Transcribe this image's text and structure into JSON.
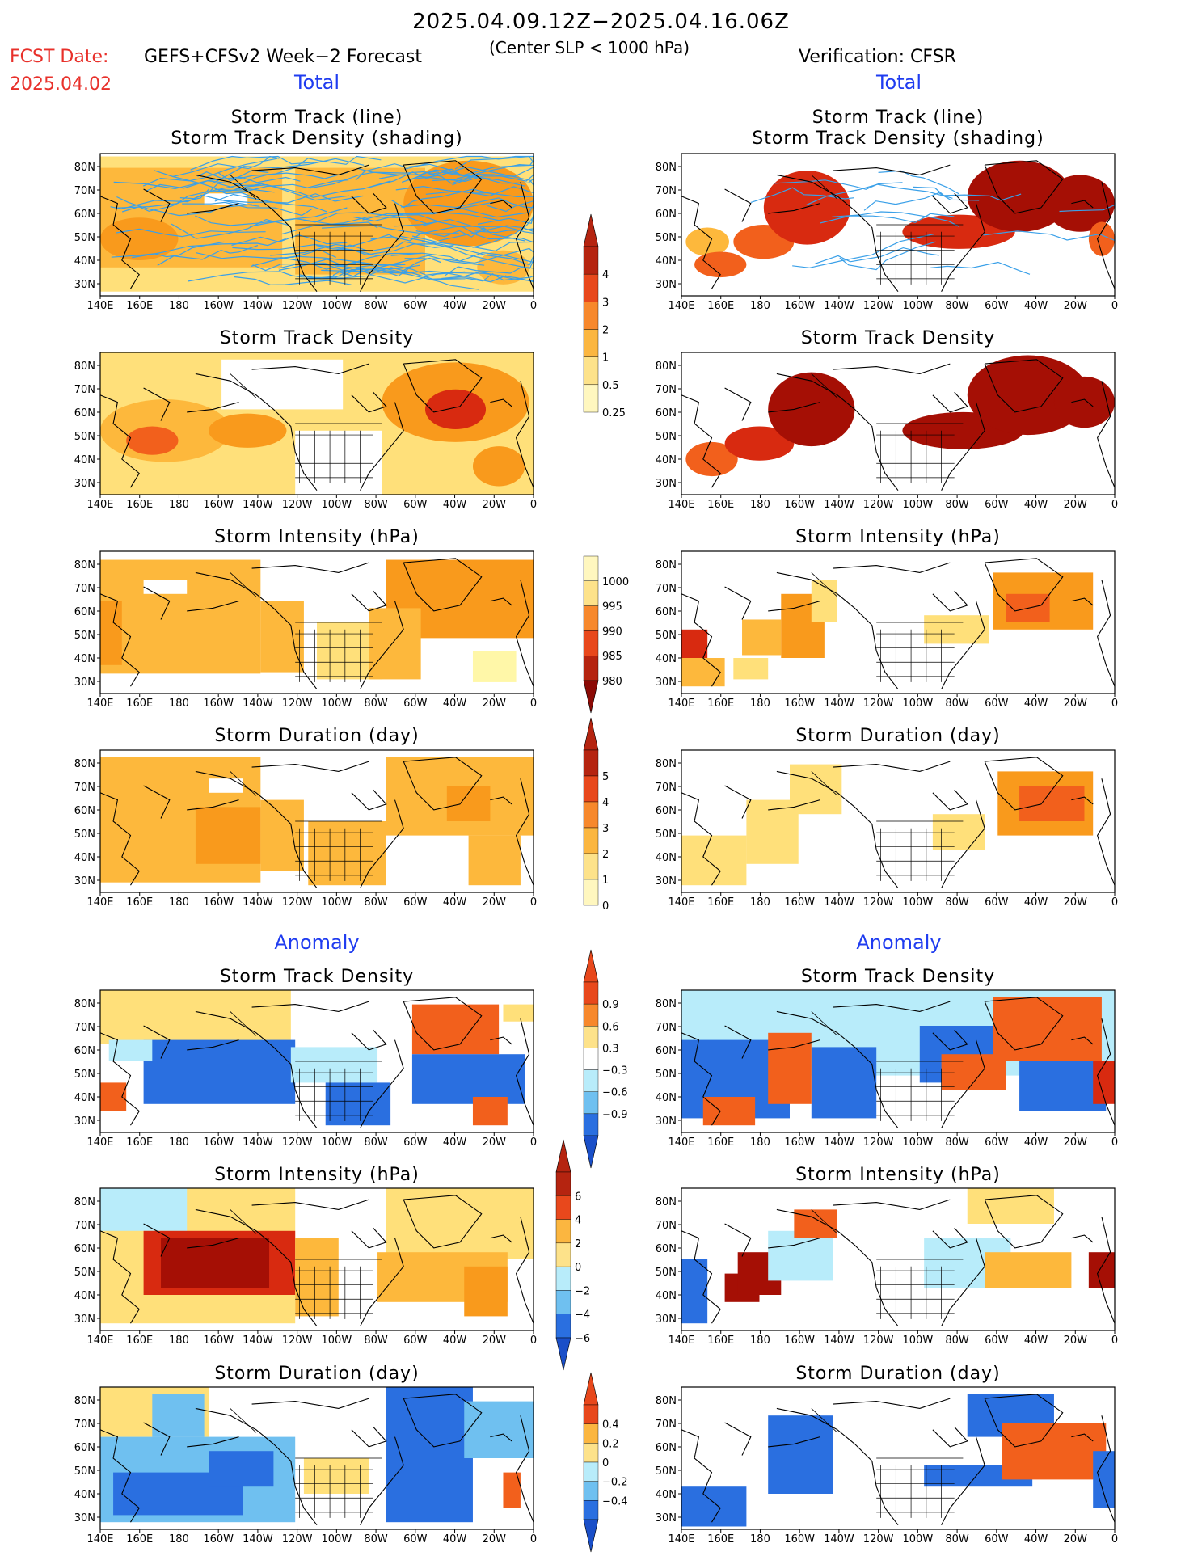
{
  "header": {
    "title": "2025.04.09.12Z−2025.04.16.06Z",
    "fcst_label": "FCST Date:",
    "fcst_date": "2025.04.02",
    "model": "GEFS+CFSv2 Week−2 Forecast",
    "slp_note": "(Center SLP < 1000 hPa)",
    "verification": "Verification: CFSR"
  },
  "section_labels": {
    "left_total": "Total",
    "right_total": "Total",
    "left_anomaly": "Anomaly",
    "right_anomaly": "Anomaly"
  },
  "panel_titles": {
    "track_line": "Storm Track (line)",
    "track_density_shading": "Storm Track Density (shading)",
    "track_density": "Storm Track Density",
    "intensity": "Storm Intensity (hPa)",
    "duration": "Storm Duration (day)"
  },
  "map_axes": {
    "lon_labels": [
      "140E",
      "160E",
      "180",
      "160W",
      "140W",
      "120W",
      "100W",
      "80W",
      "60W",
      "40W",
      "20W",
      "0"
    ],
    "lat_labels": [
      "80N",
      "70N",
      "60N",
      "50N",
      "40N",
      "30N"
    ]
  },
  "colorbars": {
    "track_density": [
      "4",
      "3",
      "2",
      "1",
      "0.5",
      "0.25"
    ],
    "intensity": [
      "1000",
      "995",
      "990",
      "985",
      "980"
    ],
    "duration": [
      "5",
      "4",
      "3",
      "2",
      "1",
      "0"
    ],
    "density_anomaly": [
      "0.9",
      "0.6",
      "0.3",
      "−0.3",
      "−0.6",
      "−0.9"
    ],
    "intensity_anomaly": [
      "6",
      "4",
      "2",
      "0",
      "−2",
      "−4",
      "−6"
    ],
    "duration_anomaly": [
      "0.4",
      "0.2",
      "0",
      "−0.2",
      "−0.4"
    ]
  },
  "colors": {
    "forecast_red": "#e8302a",
    "section_blue": "#1f3cf0",
    "track_line": "#3aa0e8"
  }
}
